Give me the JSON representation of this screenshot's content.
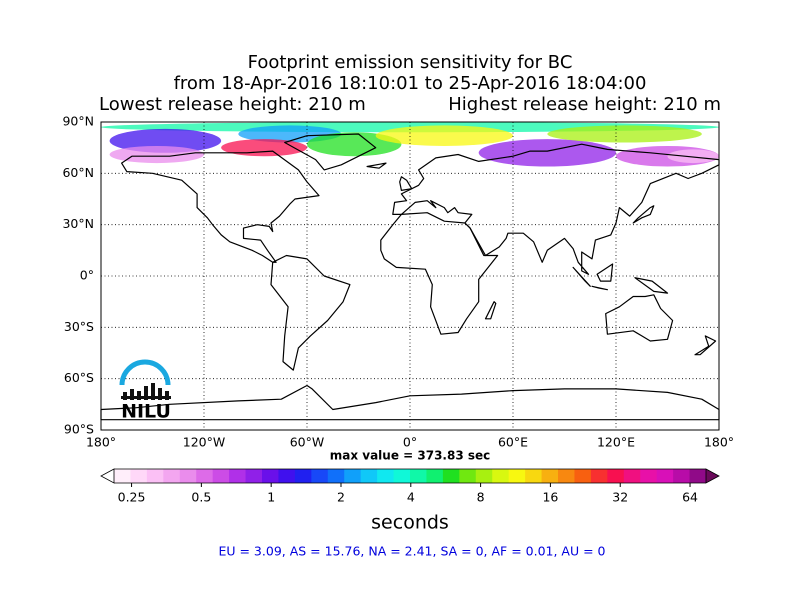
{
  "chart_data": {
    "type": "map",
    "title": [
      "Footprint emission sensitivity for BC",
      "from 18-Apr-2016 18:10:01 to 25-Apr-2016 18:04:00"
    ],
    "subtitle_left": "Lowest release height: 210 m",
    "subtitle_right": "Highest release height: 210 m",
    "xlim": [
      -180,
      180
    ],
    "ylim": [
      -90,
      90
    ],
    "xticks": [
      {
        "value": -180,
        "label": "180°"
      },
      {
        "value": -120,
        "label": "120°W"
      },
      {
        "value": -60,
        "label": "60°W"
      },
      {
        "value": 0,
        "label": "0°"
      },
      {
        "value": 60,
        "label": "60°E"
      },
      {
        "value": 120,
        "label": "120°E"
      },
      {
        "value": 180,
        "label": "180°"
      }
    ],
    "yticks": [
      {
        "value": 90,
        "label": "90°N"
      },
      {
        "value": 60,
        "label": "60°N"
      },
      {
        "value": 30,
        "label": "30°N"
      },
      {
        "value": 0,
        "label": "0°"
      },
      {
        "value": -30,
        "label": "30°S"
      },
      {
        "value": -60,
        "label": "60°S"
      },
      {
        "value": -90,
        "label": "90°S"
      }
    ],
    "grid": true,
    "annotation": "max value = 373.83 sec",
    "logo": "NILU",
    "colorbar": {
      "label": "seconds",
      "log_scale": true,
      "clim": [
        0.21,
        75
      ],
      "ticks": [
        0.25,
        0.5,
        1,
        2,
        4,
        8,
        16,
        32,
        64
      ],
      "extend_colors": [
        "#ffffff",
        "#6a0a5a"
      ],
      "colors": [
        "#ffeefa",
        "#ffd8f8",
        "#fbc0f5",
        "#f3a6f0",
        "#ea8cec",
        "#dd6be8",
        "#cc4ce6",
        "#b030e8",
        "#9020e8",
        "#6a10ea",
        "#4010ee",
        "#2020f0",
        "#1848f8",
        "#1070fa",
        "#10a0fa",
        "#10c8f8",
        "#10e8f0",
        "#10f8d8",
        "#10f8a8",
        "#10f070",
        "#20e020",
        "#70e810",
        "#a8f010",
        "#d8f810",
        "#f8f810",
        "#f8d810",
        "#f8b010",
        "#f88810",
        "#f86010",
        "#f83030",
        "#f81050",
        "#f01080",
        "#e810a8",
        "#d810b8",
        "#b80ca8",
        "#900a88"
      ]
    },
    "footer": "EU = 3.09,  AS = 15.76,  NA = 2.41,  SA = 0,  AF = 0.01,  AU = 0"
  }
}
